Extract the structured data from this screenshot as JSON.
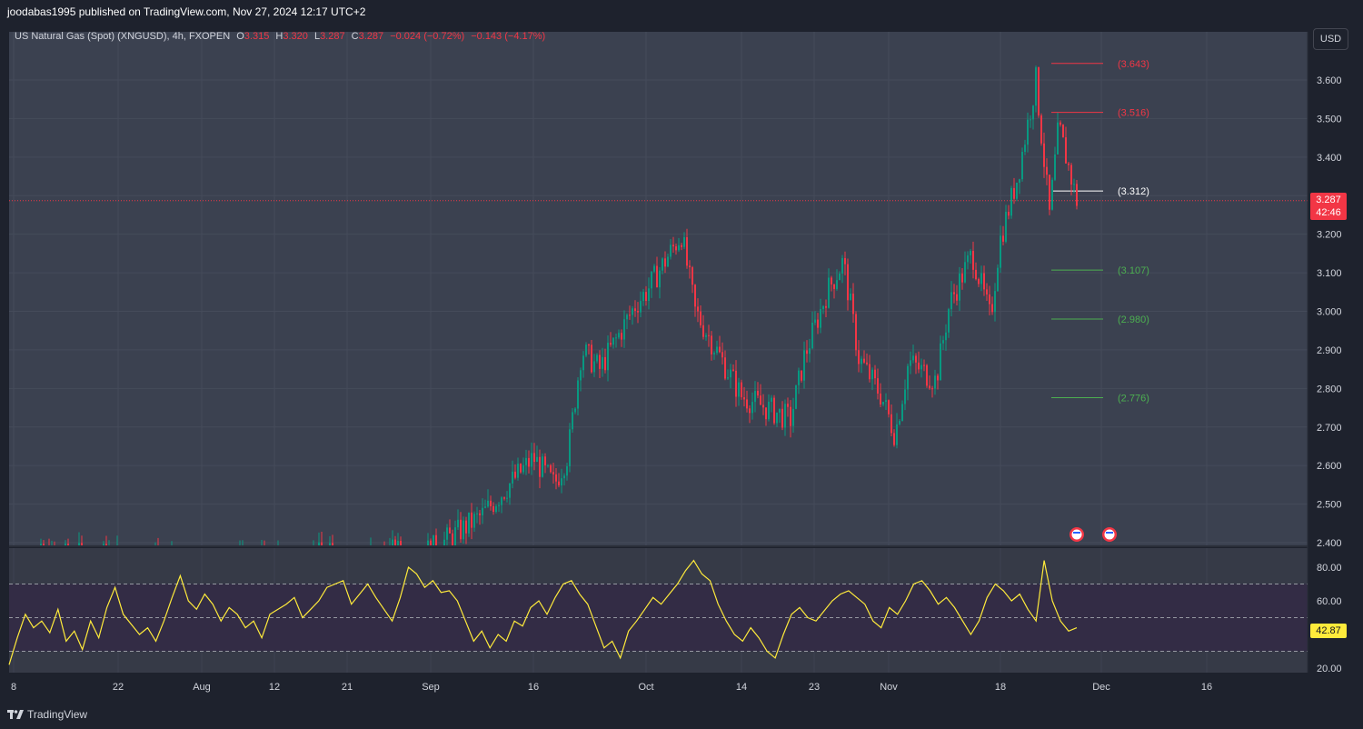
{
  "header": {
    "publisher_line": "joodabas1995 published on TradingView.com, Nov 27, 2024 12:17 UTC+2"
  },
  "legend": {
    "symbol": "US Natural Gas (Spot) (XNGUSD), 4h, FXOPEN",
    "open_label": "O",
    "open": "3.315",
    "high_label": "H",
    "high": "3.320",
    "low_label": "L",
    "low": "3.287",
    "close_label": "C",
    "close": "3.287",
    "change": "−0.024 (−0.72%)",
    "change2": "−0.143 (−4.17%)"
  },
  "currency_button": "USD",
  "price_tag": {
    "price": "3.287",
    "countdown": "42:46"
  },
  "rsi_tag": {
    "value": "42.87"
  },
  "footer": {
    "brand": "TradingView"
  },
  "colors": {
    "bg": "#1e222d",
    "pane": "#3b4150",
    "rsi_band": "#2d2740",
    "up": "#089981",
    "down": "#f23645",
    "rsi": "#ffeb3b",
    "white": "#ffffff"
  },
  "chart_data": [
    {
      "type": "candlestick",
      "timeframe": "4h",
      "ylim": [
        2.4,
        3.7
      ],
      "y_ticks": [
        "2.400",
        "2.500",
        "2.600",
        "2.700",
        "2.800",
        "2.900",
        "3.000",
        "3.100",
        "3.200",
        "3.300",
        "3.400",
        "3.500",
        "3.600"
      ],
      "x_ticks": [
        "8",
        "22",
        "Aug",
        "12",
        "21",
        "Sep",
        "16",
        "Oct",
        "14",
        "23",
        "Nov",
        "18",
        "Dec",
        "16"
      ],
      "last_price": 3.287,
      "levels": [
        {
          "label": "(3.643)",
          "value": 3.643,
          "color": "#f23645"
        },
        {
          "label": "(3.516)",
          "value": 3.516,
          "color": "#f23645"
        },
        {
          "label": "(3.312)",
          "value": 3.312,
          "color": "#ffffff"
        },
        {
          "label": "(3.107)",
          "value": 3.107,
          "color": "#4caf50"
        },
        {
          "label": "(2.980)",
          "value": 2.98,
          "color": "#4caf50"
        },
        {
          "label": "(2.776)",
          "value": 2.776,
          "color": "#4caf50"
        }
      ],
      "close_path": [
        {
          "x": "8",
          "y": 2.36
        },
        {
          "x": "22",
          "y": 2.37
        },
        {
          "x": "Aug",
          "y": 2.34
        },
        {
          "x": "12",
          "y": 2.36
        },
        {
          "x": "21",
          "y": 2.37
        },
        {
          "x": "Sep",
          "y": 2.38
        },
        {
          "x": "Sep+",
          "y": 2.42
        },
        {
          "x": "Sep++",
          "y": 2.47
        },
        {
          "x": "Sep+++",
          "y": 2.55
        },
        {
          "x": "16",
          "y": 2.62
        },
        {
          "x": "16+",
          "y": 2.55
        },
        {
          "x": "16++",
          "y": 2.63
        },
        {
          "x": "16+++",
          "y": 2.9
        },
        {
          "x": "16++++",
          "y": 2.85
        },
        {
          "x": "Oct-",
          "y": 3.02
        },
        {
          "x": "Oct",
          "y": 3.05
        },
        {
          "x": "Oct+",
          "y": 3.2
        },
        {
          "x": "Oct++",
          "y": 3.0
        },
        {
          "x": "Oct+++",
          "y": 2.85
        },
        {
          "x": "14",
          "y": 2.78
        },
        {
          "x": "14+",
          "y": 2.72
        },
        {
          "x": "14++",
          "y": 2.88
        },
        {
          "x": "23",
          "y": 3.05
        },
        {
          "x": "23+",
          "y": 3.13
        },
        {
          "x": "23++",
          "y": 2.88
        },
        {
          "x": "Nov-",
          "y": 2.78
        },
        {
          "x": "Nov",
          "y": 2.68
        },
        {
          "x": "Nov+",
          "y": 2.87
        },
        {
          "x": "Nov++",
          "y": 2.82
        },
        {
          "x": "Nov+++",
          "y": 3.02
        },
        {
          "x": "Nov++++",
          "y": 3.15
        },
        {
          "x": "18-",
          "y": 2.98
        },
        {
          "x": "18",
          "y": 3.18
        },
        {
          "x": "18+",
          "y": 3.35
        },
        {
          "x": "18++",
          "y": 3.6
        },
        {
          "x": "18+++",
          "y": 3.25
        },
        {
          "x": "18++++",
          "y": 3.48
        },
        {
          "x": "last",
          "y": 3.287
        }
      ]
    },
    {
      "type": "line",
      "name": "",
      "ylim": [
        15,
        88
      ],
      "y_ticks": [
        "20.00",
        "40.00",
        "60.00",
        "80.00"
      ],
      "bands": [
        30,
        50,
        70
      ],
      "last_value": 42.87,
      "values": [
        22,
        38,
        52,
        44,
        48,
        41,
        55,
        36,
        42,
        31,
        48,
        38,
        56,
        68,
        52,
        46,
        40,
        44,
        36,
        48,
        62,
        75,
        60,
        55,
        64,
        58,
        48,
        56,
        52,
        44,
        48,
        38,
        52,
        55,
        58,
        62,
        50,
        55,
        60,
        68,
        70,
        72,
        58,
        64,
        70,
        62,
        55,
        48,
        62,
        80,
        76,
        68,
        72,
        65,
        66,
        60,
        48,
        36,
        42,
        32,
        40,
        36,
        48,
        45,
        56,
        60,
        52,
        62,
        70,
        72,
        64,
        58,
        45,
        32,
        36,
        26,
        42,
        48,
        55,
        62,
        58,
        64,
        70,
        78,
        84,
        76,
        72,
        58,
        48,
        40,
        36,
        44,
        38,
        30,
        26,
        40,
        52,
        56,
        50,
        48,
        54,
        60,
        64,
        66,
        62,
        58,
        48,
        44,
        56,
        52,
        60,
        70,
        72,
        66,
        58,
        62,
        56,
        48,
        40,
        48,
        62,
        70,
        66,
        60,
        64,
        55,
        48,
        84,
        60,
        48,
        42,
        44
      ]
    }
  ]
}
